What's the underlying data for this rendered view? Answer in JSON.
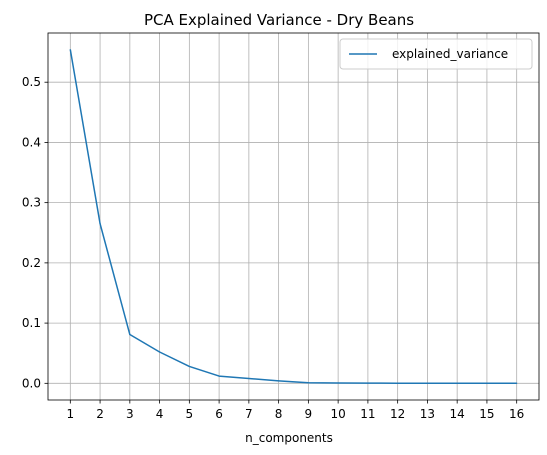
{
  "chart_data": {
    "type": "line",
    "title": "PCA Explained Variance - Dry Beans",
    "xlabel": "n_components",
    "ylabel": "",
    "x": [
      1,
      2,
      3,
      4,
      5,
      6,
      7,
      8,
      9,
      10,
      11,
      12,
      13,
      14,
      15,
      16
    ],
    "series": [
      {
        "name": "explained_variance",
        "color": "#1f77b4",
        "values": [
          0.554,
          0.265,
          0.081,
          0.052,
          0.028,
          0.012,
          0.008,
          0.004,
          0.001,
          0.0005,
          0.0003,
          0.0002,
          0.0002,
          0.0001,
          0.0001,
          0.0001
        ]
      }
    ],
    "xticks": [
      1,
      2,
      3,
      4,
      5,
      6,
      7,
      8,
      9,
      10,
      11,
      12,
      13,
      14,
      15,
      16
    ],
    "yticks": [
      "0.0",
      "0.1",
      "0.2",
      "0.3",
      "0.4",
      "0.5"
    ],
    "xlim": [
      0.25,
      16.75
    ],
    "ylim": [
      -0.0277,
      0.5817
    ],
    "grid": true,
    "legend_position": "top-right",
    "colors": {
      "grid": "#b0b0b0",
      "axes": "#000000",
      "line": "#1f77b4",
      "legend_border": "#cccccc"
    }
  }
}
